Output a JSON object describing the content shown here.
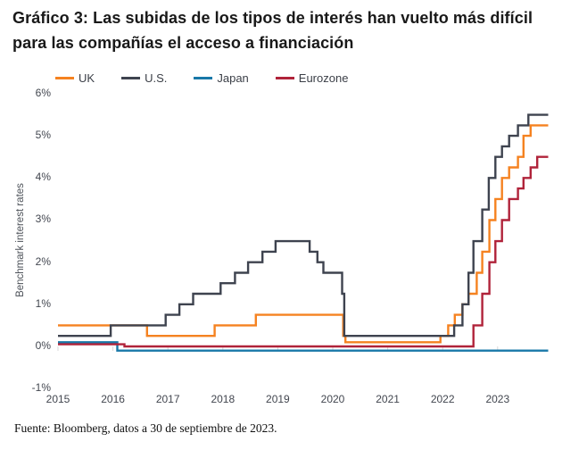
{
  "title": "Gráfico 3: Las subidas de los tipos de interés han vuelto más difícil para las compañías el acceso a financiación",
  "footer": {
    "source": "Fuente: Bloomberg, datos a 30 de septiembre de 2023."
  },
  "colors": {
    "uk": "#f58220",
    "us": "#3e434f",
    "japan": "#1878a8",
    "eurozone": "#b0233a",
    "tick_mark": "#d9d9d9",
    "axis_text": "#42464f"
  },
  "legend": [
    {
      "label": "UK",
      "color": "#f58220"
    },
    {
      "label": "U.S.",
      "color": "#3e434f"
    },
    {
      "label": "Japan",
      "color": "#1878a8"
    },
    {
      "label": "Eurozone",
      "color": "#b0233a"
    }
  ],
  "chart_data": {
    "type": "line",
    "step": true,
    "title": "Gráfico 3: Las subidas de los tipos de interés han vuelto más difícil para las compañías el acceso a financiación",
    "xlabel": "",
    "ylabel": "Benchmark interest rates",
    "xlim": [
      2015,
      2024.05
    ],
    "ylim": [
      -1,
      6
    ],
    "grid": false,
    "legend_position": "top",
    "x_ticks": [
      2015,
      2016,
      2017,
      2018,
      2019,
      2020,
      2021,
      2022,
      2023
    ],
    "y_ticks": [
      {
        "value": 6,
        "label": "6%"
      },
      {
        "value": 5,
        "label": "5%"
      },
      {
        "value": 4,
        "label": "4%"
      },
      {
        "value": 3,
        "label": "3%"
      },
      {
        "value": 2,
        "label": "2%"
      },
      {
        "value": 1,
        "label": "1%"
      },
      {
        "value": 0,
        "label": "0%"
      },
      {
        "value": -1,
        "label": "-1%"
      }
    ],
    "series": [
      {
        "name": "UK",
        "color": "#f58220",
        "points": [
          [
            2015.0,
            0.5
          ],
          [
            2016.62,
            0.25
          ],
          [
            2017.85,
            0.5
          ],
          [
            2018.6,
            0.75
          ],
          [
            2020.19,
            0.25
          ],
          [
            2020.23,
            0.1
          ],
          [
            2021.96,
            0.25
          ],
          [
            2022.1,
            0.5
          ],
          [
            2022.22,
            0.75
          ],
          [
            2022.36,
            1.0
          ],
          [
            2022.47,
            1.25
          ],
          [
            2022.62,
            1.75
          ],
          [
            2022.72,
            2.25
          ],
          [
            2022.85,
            3.0
          ],
          [
            2022.96,
            3.5
          ],
          [
            2023.08,
            4.0
          ],
          [
            2023.21,
            4.25
          ],
          [
            2023.37,
            4.5
          ],
          [
            2023.47,
            5.0
          ],
          [
            2023.6,
            5.25
          ],
          [
            2023.92,
            5.25
          ]
        ]
      },
      {
        "name": "U.S.",
        "color": "#3e434f",
        "points": [
          [
            2015.0,
            0.25
          ],
          [
            2015.96,
            0.5
          ],
          [
            2016.96,
            0.75
          ],
          [
            2017.21,
            1.0
          ],
          [
            2017.46,
            1.25
          ],
          [
            2017.96,
            1.5
          ],
          [
            2018.22,
            1.75
          ],
          [
            2018.46,
            2.0
          ],
          [
            2018.72,
            2.25
          ],
          [
            2018.96,
            2.5
          ],
          [
            2019.58,
            2.25
          ],
          [
            2019.72,
            2.0
          ],
          [
            2019.83,
            1.75
          ],
          [
            2020.17,
            1.25
          ],
          [
            2020.21,
            0.25
          ],
          [
            2022.21,
            0.5
          ],
          [
            2022.36,
            1.0
          ],
          [
            2022.47,
            1.75
          ],
          [
            2022.56,
            2.5
          ],
          [
            2022.72,
            3.25
          ],
          [
            2022.84,
            4.0
          ],
          [
            2022.96,
            4.5
          ],
          [
            2023.08,
            4.75
          ],
          [
            2023.21,
            5.0
          ],
          [
            2023.37,
            5.25
          ],
          [
            2023.56,
            5.5
          ],
          [
            2023.92,
            5.5
          ]
        ]
      },
      {
        "name": "Japan",
        "color": "#1878a8",
        "points": [
          [
            2015.0,
            0.1
          ],
          [
            2016.08,
            -0.1
          ],
          [
            2023.92,
            -0.1
          ]
        ]
      },
      {
        "name": "Eurozone",
        "color": "#b0233a",
        "points": [
          [
            2015.0,
            0.05
          ],
          [
            2016.21,
            0.0
          ],
          [
            2022.56,
            0.5
          ],
          [
            2022.72,
            1.25
          ],
          [
            2022.85,
            2.0
          ],
          [
            2022.96,
            2.5
          ],
          [
            2023.08,
            3.0
          ],
          [
            2023.21,
            3.5
          ],
          [
            2023.37,
            3.75
          ],
          [
            2023.47,
            4.0
          ],
          [
            2023.6,
            4.25
          ],
          [
            2023.72,
            4.5
          ],
          [
            2023.92,
            4.5
          ]
        ]
      }
    ]
  }
}
